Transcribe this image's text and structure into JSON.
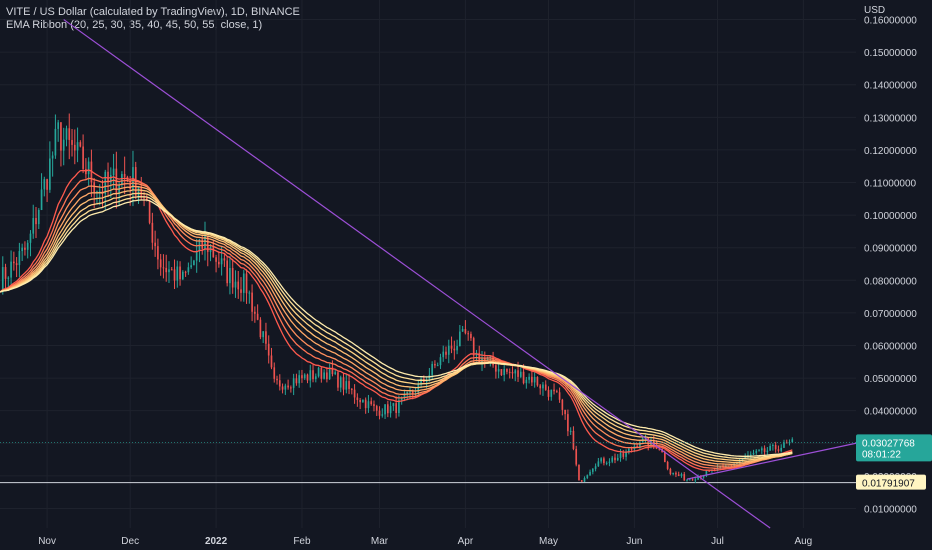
{
  "header": {
    "title": "VITE / US Dollar (calculated by TradingView), 1D, BINANCE",
    "indicator": "EMA Ribbon (20, 25, 30, 35, 40, 45, 50, 55, close, 1)"
  },
  "colors": {
    "background": "#131722",
    "up_candle": "#26a69a",
    "down_candle": "#ef5350",
    "trendline": "#9c4fd6",
    "price_tag": "#26a69a",
    "level_tag": "#fff5c2"
  },
  "chart_data": {
    "type": "candlestick",
    "currency_label": "USD",
    "y_ticks": [
      "0.16000000",
      "0.15000000",
      "0.14000000",
      "0.13000000",
      "0.12000000",
      "0.11000000",
      "0.10000000",
      "0.09000000",
      "0.08000000",
      "0.07000000",
      "0.06000000",
      "0.05000000",
      "0.04000000",
      "0.03000000",
      "0.02000000",
      "0.01000000"
    ],
    "y_tick_values": [
      0.16,
      0.15,
      0.14,
      0.13,
      0.12,
      0.11,
      0.1,
      0.09,
      0.08,
      0.07,
      0.06,
      0.05,
      0.04,
      0.03,
      0.02,
      0.01
    ],
    "x_ticks": [
      {
        "label": "Nov",
        "date": "2021-11-01",
        "bold": false
      },
      {
        "label": "Dec",
        "date": "2021-12-01",
        "bold": false
      },
      {
        "label": "2022",
        "date": "2022-01-01",
        "bold": true
      },
      {
        "label": "Feb",
        "date": "2022-02-01",
        "bold": false
      },
      {
        "label": "Mar",
        "date": "2022-03-01",
        "bold": false
      },
      {
        "label": "Apr",
        "date": "2022-04-01",
        "bold": false
      },
      {
        "label": "May",
        "date": "2022-05-01",
        "bold": false
      },
      {
        "label": "Jun",
        "date": "2022-06-01",
        "bold": false
      },
      {
        "label": "Jul",
        "date": "2022-07-01",
        "bold": false
      },
      {
        "label": "Aug",
        "date": "2022-08-01",
        "bold": false
      }
    ],
    "x_range": [
      "2021-10-15",
      "2022-08-20"
    ],
    "y_range": [
      0.004,
      0.166
    ],
    "current_price": "0.03027768",
    "countdown": "08:01:22",
    "horizontal_level": "0.01791907",
    "price_anchors": [
      {
        "date": "2021-10-15",
        "close": 0.08
      },
      {
        "date": "2021-10-25",
        "close": 0.09
      },
      {
        "date": "2021-11-05",
        "close": 0.125
      },
      {
        "date": "2021-11-12",
        "close": 0.118
      },
      {
        "date": "2021-11-20",
        "close": 0.108
      },
      {
        "date": "2021-11-28",
        "close": 0.112
      },
      {
        "date": "2021-12-04",
        "close": 0.11
      },
      {
        "date": "2021-12-12",
        "close": 0.085
      },
      {
        "date": "2021-12-20",
        "close": 0.08
      },
      {
        "date": "2021-12-28",
        "close": 0.092
      },
      {
        "date": "2022-01-05",
        "close": 0.082
      },
      {
        "date": "2022-01-12",
        "close": 0.078
      },
      {
        "date": "2022-01-18",
        "close": 0.062
      },
      {
        "date": "2022-01-22",
        "close": 0.048
      },
      {
        "date": "2022-02-01",
        "close": 0.05
      },
      {
        "date": "2022-02-10",
        "close": 0.052
      },
      {
        "date": "2022-02-20",
        "close": 0.045
      },
      {
        "date": "2022-02-28",
        "close": 0.04
      },
      {
        "date": "2022-03-07",
        "close": 0.041
      },
      {
        "date": "2022-03-15",
        "close": 0.047
      },
      {
        "date": "2022-03-25",
        "close": 0.058
      },
      {
        "date": "2022-04-01",
        "close": 0.063
      },
      {
        "date": "2022-04-05",
        "close": 0.057
      },
      {
        "date": "2022-04-15",
        "close": 0.052
      },
      {
        "date": "2022-04-25",
        "close": 0.05
      },
      {
        "date": "2022-05-04",
        "close": 0.044
      },
      {
        "date": "2022-05-09",
        "close": 0.033
      },
      {
        "date": "2022-05-12",
        "close": 0.018
      },
      {
        "date": "2022-05-18",
        "close": 0.024
      },
      {
        "date": "2022-05-28",
        "close": 0.026
      },
      {
        "date": "2022-06-03",
        "close": 0.031
      },
      {
        "date": "2022-06-10",
        "close": 0.029
      },
      {
        "date": "2022-06-14",
        "close": 0.021
      },
      {
        "date": "2022-06-20",
        "close": 0.019
      },
      {
        "date": "2022-06-28",
        "close": 0.021
      },
      {
        "date": "2022-07-05",
        "close": 0.023
      },
      {
        "date": "2022-07-12",
        "close": 0.026
      },
      {
        "date": "2022-07-20",
        "close": 0.028
      },
      {
        "date": "2022-07-28",
        "close": 0.03
      }
    ],
    "trendlines": [
      {
        "from": {
          "date": "2021-11-07",
          "price": 0.16
        },
        "to": {
          "date": "2022-07-20",
          "price": 0.004
        }
      },
      {
        "from": {
          "date": "2022-06-20",
          "price": 0.019
        },
        "to": {
          "date": "2022-08-20",
          "price": 0.03
        }
      }
    ],
    "ema_periods": [
      20,
      25,
      30,
      35,
      40,
      45,
      50,
      55
    ]
  }
}
